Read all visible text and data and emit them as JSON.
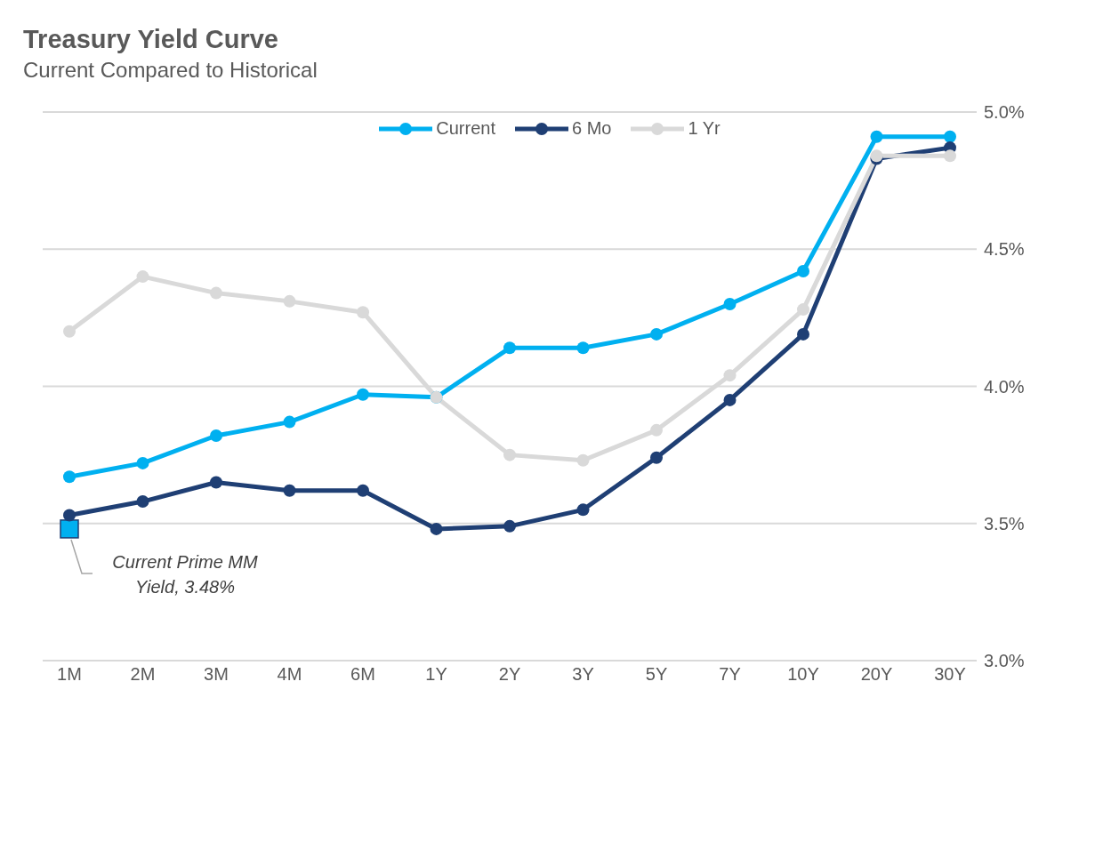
{
  "chart_data": {
    "type": "line",
    "title": "Treasury Yield Curve",
    "subtitle": "Current Compared to Historical",
    "categories": [
      "1M",
      "2M",
      "3M",
      "4M",
      "6M",
      "1Y",
      "2Y",
      "3Y",
      "5Y",
      "7Y",
      "10Y",
      "20Y",
      "30Y"
    ],
    "series": [
      {
        "name": "Current",
        "color": "#00b0f0",
        "values": [
          3.67,
          3.72,
          3.82,
          3.87,
          3.97,
          3.96,
          4.14,
          4.14,
          4.19,
          4.3,
          4.42,
          4.91,
          4.91
        ]
      },
      {
        "name": "6 Mo",
        "color": "#1f3f74",
        "values": [
          3.53,
          3.58,
          3.65,
          3.62,
          3.62,
          3.48,
          3.49,
          3.55,
          3.74,
          3.95,
          4.19,
          4.83,
          4.87
        ]
      },
      {
        "name": "1 Yr",
        "color": "#d9d9d9",
        "values": [
          4.2,
          4.4,
          4.34,
          4.31,
          4.27,
          3.96,
          3.75,
          3.73,
          3.84,
          4.04,
          4.28,
          4.84,
          4.84
        ]
      },
      {
        "type": "scatter",
        "color": "#00b0f0",
        "x": [
          "1M"
        ],
        "values": [
          3.48
        ],
        "marker": "square"
      }
    ],
    "ylim": [
      3.0,
      5.0
    ],
    "yticks": [
      {
        "value": 3.0,
        "label": "3.0%"
      },
      {
        "value": 3.5,
        "label": "3.5%"
      },
      {
        "value": 4.0,
        "label": "4.0%"
      },
      {
        "value": 4.5,
        "label": "4.5%"
      },
      {
        "value": 5.0,
        "label": "5.0%"
      }
    ],
    "grid": "y",
    "legend": "top",
    "marker": "circle",
    "annotations": [
      {
        "text": "Current Prime MM Yield, 3.48%",
        "x": "1M",
        "y": 3.48
      }
    ]
  }
}
